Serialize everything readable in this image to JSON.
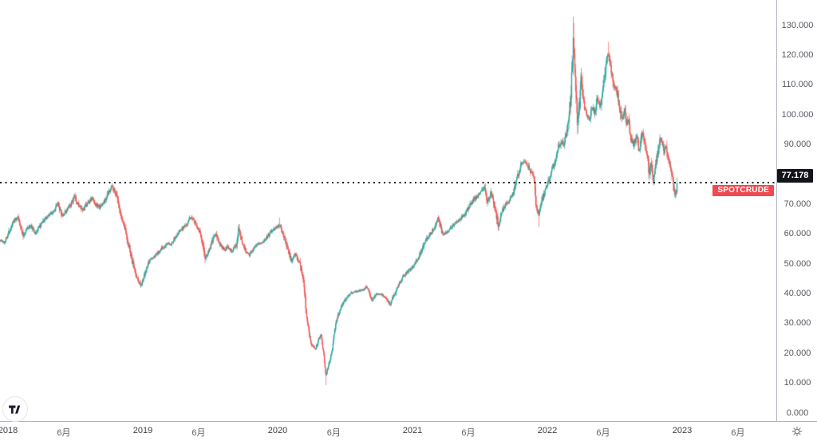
{
  "chart": {
    "symbol": "SPOTCRUDE",
    "last_price_label": "77.178"
  },
  "icons": {
    "settings": "gear-icon",
    "logo": "tradingview-logo"
  },
  "chart_data": {
    "type": "candlestick",
    "title": "SPOTCRUDE daily candlestick chart",
    "legend_position": "none",
    "grid": false,
    "colors": {
      "up": "#26a69a",
      "down": "#ef5350",
      "price_line": "#111319"
    },
    "last_price": 77.178,
    "price_line": {
      "value": 77.178,
      "style": "dotted"
    },
    "y_axis": {
      "min": 0,
      "max": 130,
      "tick_step": 10,
      "tick_labels": [
        "0.000",
        "10.000",
        "20.000",
        "30.000",
        "40.000",
        "50.000",
        "60.000",
        "70.000",
        "80.000",
        "90.000",
        "100.000",
        "110.000",
        "120.000",
        "130.000"
      ]
    },
    "x_axis": {
      "ticks": [
        {
          "label": "2018",
          "time": 2018.0,
          "kind": "year"
        },
        {
          "label": "6月",
          "time": 2018.414,
          "kind": "month"
        },
        {
          "label": "2019",
          "time": 2019.0,
          "kind": "year"
        },
        {
          "label": "6月",
          "time": 2019.414,
          "kind": "month"
        },
        {
          "label": "2020",
          "time": 2020.0,
          "kind": "year"
        },
        {
          "label": "6月",
          "time": 2020.416,
          "kind": "month"
        },
        {
          "label": "2021",
          "time": 2021.0,
          "kind": "year"
        },
        {
          "label": "6月",
          "time": 2021.414,
          "kind": "month"
        },
        {
          "label": "2022",
          "time": 2022.0,
          "kind": "year"
        },
        {
          "label": "6月",
          "time": 2022.414,
          "kind": "month"
        },
        {
          "label": "2023",
          "time": 2023.0,
          "kind": "year"
        },
        {
          "label": "6月",
          "time": 2023.414,
          "kind": "month"
        }
      ]
    },
    "time_range": [
      2017.94,
      2022.962
    ],
    "bars_per_year": 252,
    "price_path_anchors": [
      [
        2017.94,
        58.0
      ],
      [
        2017.97,
        57.2
      ],
      [
        2018.0,
        60.2
      ],
      [
        2018.03,
        63.5
      ],
      [
        2018.07,
        65.8
      ],
      [
        2018.09,
        63.0
      ],
      [
        2018.11,
        59.3
      ],
      [
        2018.14,
        62.0
      ],
      [
        2018.17,
        62.8
      ],
      [
        2018.2,
        60.2
      ],
      [
        2018.24,
        63.0
      ],
      [
        2018.28,
        65.5
      ],
      [
        2018.31,
        66.8
      ],
      [
        2018.34,
        68.0
      ],
      [
        2018.37,
        70.3
      ],
      [
        2018.4,
        65.8
      ],
      [
        2018.44,
        68.5
      ],
      [
        2018.47,
        70.5
      ],
      [
        2018.49,
        72.5
      ],
      [
        2018.52,
        70.0
      ],
      [
        2018.55,
        67.8
      ],
      [
        2018.59,
        70.5
      ],
      [
        2018.62,
        72.0
      ],
      [
        2018.65,
        70.0
      ],
      [
        2018.68,
        69.0
      ],
      [
        2018.72,
        71.5
      ],
      [
        2018.75,
        74.5
      ],
      [
        2018.77,
        76.3
      ],
      [
        2018.8,
        73.5
      ],
      [
        2018.83,
        66.8
      ],
      [
        2018.86,
        63.0
      ],
      [
        2018.89,
        56.8
      ],
      [
        2018.92,
        50.8
      ],
      [
        2018.95,
        45.8
      ],
      [
        2018.985,
        42.6
      ],
      [
        2019.02,
        47.5
      ],
      [
        2019.05,
        51.5
      ],
      [
        2019.09,
        52.5
      ],
      [
        2019.13,
        55.0
      ],
      [
        2019.17,
        56.5
      ],
      [
        2019.21,
        57.0
      ],
      [
        2019.25,
        60.0
      ],
      [
        2019.29,
        62.0
      ],
      [
        2019.33,
        63.8
      ],
      [
        2019.36,
        66.0
      ],
      [
        2019.39,
        63.5
      ],
      [
        2019.42,
        61.0
      ],
      [
        2019.44,
        56.8
      ],
      [
        2019.46,
        52.0
      ],
      [
        2019.49,
        54.5
      ],
      [
        2019.52,
        58.5
      ],
      [
        2019.54,
        60.0
      ],
      [
        2019.57,
        56.5
      ],
      [
        2019.6,
        54.8
      ],
      [
        2019.63,
        56.0
      ],
      [
        2019.66,
        54.2
      ],
      [
        2019.69,
        56.5
      ],
      [
        2019.71,
        62.0
      ],
      [
        2019.73,
        58.0
      ],
      [
        2019.76,
        54.5
      ],
      [
        2019.79,
        53.2
      ],
      [
        2019.82,
        55.5
      ],
      [
        2019.85,
        57.0
      ],
      [
        2019.88,
        57.0
      ],
      [
        2019.91,
        58.5
      ],
      [
        2019.94,
        60.5
      ],
      [
        2019.97,
        61.8
      ],
      [
        2020.01,
        63.0
      ],
      [
        2020.04,
        60.0
      ],
      [
        2020.07,
        55.5
      ],
      [
        2020.1,
        51.0
      ],
      [
        2020.13,
        53.3
      ],
      [
        2020.16,
        50.3
      ],
      [
        2020.18,
        46.5
      ],
      [
        2020.195,
        42.0
      ],
      [
        2020.21,
        33.5
      ],
      [
        2020.23,
        27.0
      ],
      [
        2020.25,
        23.0
      ],
      [
        2020.28,
        21.5
      ],
      [
        2020.3,
        24.5
      ],
      [
        2020.32,
        26.5
      ],
      [
        2020.34,
        20.0
      ],
      [
        2020.355,
        12.0
      ],
      [
        2020.37,
        15.5
      ],
      [
        2020.39,
        18.5
      ],
      [
        2020.41,
        24.0
      ],
      [
        2020.43,
        30.5
      ],
      [
        2020.45,
        33.5
      ],
      [
        2020.48,
        36.5
      ],
      [
        2020.51,
        39.0
      ],
      [
        2020.55,
        40.5
      ],
      [
        2020.59,
        41.0
      ],
      [
        2020.63,
        41.5
      ],
      [
        2020.66,
        42.5
      ],
      [
        2020.7,
        37.8
      ],
      [
        2020.73,
        40.0
      ],
      [
        2020.77,
        39.8
      ],
      [
        2020.8,
        38.5
      ],
      [
        2020.83,
        36.2
      ],
      [
        2020.86,
        39.5
      ],
      [
        2020.89,
        42.5
      ],
      [
        2020.93,
        45.8
      ],
      [
        2020.97,
        47.8
      ],
      [
        2021.01,
        49.5
      ],
      [
        2021.05,
        53.0
      ],
      [
        2021.09,
        57.5
      ],
      [
        2021.13,
        60.0
      ],
      [
        2021.16,
        62.5
      ],
      [
        2021.19,
        66.0
      ],
      [
        2021.22,
        60.0
      ],
      [
        2021.26,
        61.0
      ],
      [
        2021.3,
        63.0
      ],
      [
        2021.34,
        64.8
      ],
      [
        2021.38,
        66.2
      ],
      [
        2021.42,
        69.5
      ],
      [
        2021.46,
        72.0
      ],
      [
        2021.5,
        74.0
      ],
      [
        2021.53,
        76.2
      ],
      [
        2021.555,
        70.8
      ],
      [
        2021.58,
        73.8
      ],
      [
        2021.61,
        69.0
      ],
      [
        2021.635,
        62.9
      ],
      [
        2021.66,
        67.8
      ],
      [
        2021.7,
        70.5
      ],
      [
        2021.74,
        73.0
      ],
      [
        2021.77,
        78.0
      ],
      [
        2021.8,
        82.8
      ],
      [
        2021.82,
        84.3
      ],
      [
        2021.85,
        83.5
      ],
      [
        2021.875,
        81.0
      ],
      [
        2021.9,
        78.5
      ],
      [
        2021.915,
        69.5
      ],
      [
        2021.935,
        66.8
      ],
      [
        2021.96,
        71.8
      ],
      [
        2021.99,
        75.8
      ],
      [
        2022.02,
        79.0
      ],
      [
        2022.05,
        84.0
      ],
      [
        2022.08,
        89.0
      ],
      [
        2022.1,
        91.5
      ],
      [
        2022.12,
        90.0
      ],
      [
        2022.15,
        96.0
      ],
      [
        2022.17,
        104.0
      ],
      [
        2022.19,
        123.5
      ],
      [
        2022.205,
        112.0
      ],
      [
        2022.225,
        97.5
      ],
      [
        2022.25,
        112.0
      ],
      [
        2022.27,
        103.5
      ],
      [
        2022.29,
        100.0
      ],
      [
        2022.31,
        98.5
      ],
      [
        2022.33,
        103.0
      ],
      [
        2022.35,
        101.0
      ],
      [
        2022.37,
        105.5
      ],
      [
        2022.39,
        103.0
      ],
      [
        2022.41,
        109.0
      ],
      [
        2022.43,
        116.0
      ],
      [
        2022.45,
        120.5
      ],
      [
        2022.47,
        116.0
      ],
      [
        2022.49,
        110.0
      ],
      [
        2022.51,
        109.0
      ],
      [
        2022.53,
        104.0
      ],
      [
        2022.55,
        98.0
      ],
      [
        2022.57,
        102.0
      ],
      [
        2022.585,
        96.5
      ],
      [
        2022.6,
        98.5
      ],
      [
        2022.62,
        92.0
      ],
      [
        2022.64,
        90.0
      ],
      [
        2022.66,
        93.0
      ],
      [
        2022.68,
        88.0
      ],
      [
        2022.7,
        93.8
      ],
      [
        2022.72,
        90.5
      ],
      [
        2022.74,
        86.0
      ],
      [
        2022.755,
        79.8
      ],
      [
        2022.77,
        84.0
      ],
      [
        2022.785,
        78.5
      ],
      [
        2022.8,
        82.5
      ],
      [
        2022.82,
        88.0
      ],
      [
        2022.835,
        92.0
      ],
      [
        2022.85,
        90.5
      ],
      [
        2022.865,
        88.0
      ],
      [
        2022.88,
        90.0
      ],
      [
        2022.9,
        84.0
      ],
      [
        2022.92,
        80.5
      ],
      [
        2022.94,
        74.5
      ],
      [
        2022.95,
        73.2
      ],
      [
        2022.962,
        77.178
      ]
    ],
    "wick_extremes": [
      {
        "t": 2018.77,
        "high": 77.1
      },
      {
        "t": 2018.985,
        "low": 42.0
      },
      {
        "t": 2019.71,
        "high": 63.4
      },
      {
        "t": 2020.01,
        "high": 65.6
      },
      {
        "t": 2020.355,
        "low": 9.4
      },
      {
        "t": 2021.53,
        "high": 76.9
      },
      {
        "t": 2021.82,
        "high": 85.4
      },
      {
        "t": 2021.935,
        "low": 62.4
      },
      {
        "t": 2022.19,
        "high": 133.0
      },
      {
        "t": 2022.225,
        "low": 94.0
      },
      {
        "t": 2022.45,
        "high": 124.5
      },
      {
        "t": 2022.95,
        "low": 72.2
      }
    ]
  }
}
